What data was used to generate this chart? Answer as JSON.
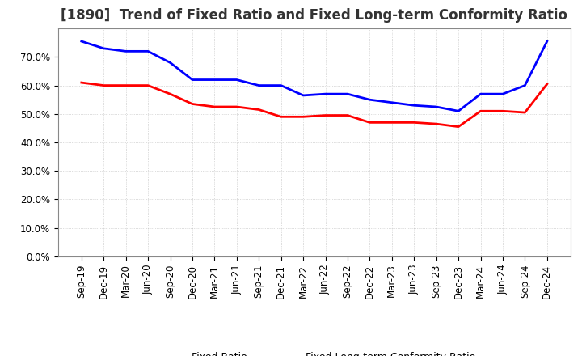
{
  "title": "[1890]  Trend of Fixed Ratio and Fixed Long-term Conformity Ratio",
  "x_labels": [
    "Sep-19",
    "Dec-19",
    "Mar-20",
    "Jun-20",
    "Sep-20",
    "Dec-20",
    "Mar-21",
    "Jun-21",
    "Sep-21",
    "Dec-21",
    "Mar-22",
    "Jun-22",
    "Sep-22",
    "Dec-22",
    "Mar-23",
    "Jun-23",
    "Sep-23",
    "Dec-23",
    "Mar-24",
    "Jun-24",
    "Sep-24",
    "Dec-24"
  ],
  "fixed_ratio": [
    75.5,
    73.0,
    72.0,
    72.0,
    68.0,
    62.0,
    62.0,
    62.0,
    60.0,
    60.0,
    56.5,
    57.0,
    57.0,
    55.0,
    54.0,
    53.0,
    52.5,
    51.0,
    57.0,
    57.0,
    60.0,
    75.5
  ],
  "fixed_lt_conformity": [
    61.0,
    60.0,
    60.0,
    60.0,
    57.0,
    53.5,
    52.5,
    52.5,
    51.5,
    49.0,
    49.0,
    49.5,
    49.5,
    47.0,
    47.0,
    47.0,
    46.5,
    45.5,
    51.0,
    51.0,
    50.5,
    60.5
  ],
  "blue_color": "#0000FF",
  "red_color": "#FF0000",
  "ylim": [
    0,
    80
  ],
  "yticks": [
    0,
    10,
    20,
    30,
    40,
    50,
    60,
    70
  ],
  "background_color": "#FFFFFF",
  "plot_bg_color": "#FFFFFF",
  "grid_color": "#AAAAAA",
  "legend_fixed_ratio": "Fixed Ratio",
  "legend_fixed_lt": "Fixed Long-term Conformity Ratio",
  "title_fontsize": 12,
  "title_color": "#333333",
  "line_width": 2.0,
  "tick_fontsize": 8.5,
  "legend_fontsize": 9
}
